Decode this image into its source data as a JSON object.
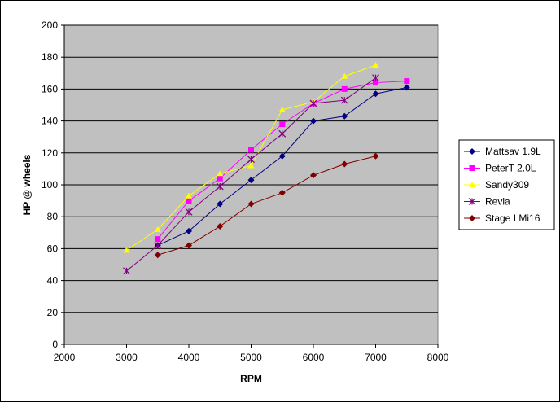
{
  "chart_data": {
    "type": "line",
    "title": "",
    "xlabel": "RPM",
    "ylabel": "HP @ wheels",
    "xlim": [
      2000,
      8000
    ],
    "ylim": [
      0,
      200
    ],
    "x_ticks": [
      2000,
      3000,
      4000,
      5000,
      6000,
      7000,
      8000
    ],
    "y_ticks": [
      0,
      20,
      40,
      60,
      80,
      100,
      120,
      140,
      160,
      180,
      200
    ],
    "grid": "horizontal",
    "legend_position": "right",
    "plot_background": "#c0c0c0",
    "series": [
      {
        "name": "Mattsav 1.9L",
        "color": "#000080",
        "marker": "diamond",
        "x": [
          3500,
          4000,
          4500,
          5000,
          5500,
          6000,
          6500,
          7000,
          7500
        ],
        "y": [
          62,
          71,
          88,
          103,
          118,
          140,
          143,
          157,
          161
        ]
      },
      {
        "name": "PeterT 2.0L",
        "color": "#ff00ff",
        "marker": "square",
        "x": [
          3500,
          4000,
          4500,
          5000,
          5500,
          6000,
          6500,
          7000,
          7500
        ],
        "y": [
          66,
          90,
          104,
          122,
          138,
          151,
          160,
          164,
          165
        ]
      },
      {
        "name": "Sandy309",
        "color": "#ffff00",
        "marker": "triangle",
        "x": [
          3000,
          3500,
          4000,
          4500,
          5000,
          5500,
          6000,
          6500,
          7000
        ],
        "y": [
          59,
          72,
          93,
          107,
          112,
          147,
          152,
          168,
          175
        ]
      },
      {
        "name": "Revla",
        "color": "#800080",
        "marker": "star",
        "x": [
          3000,
          3500,
          4000,
          4500,
          5000,
          5500,
          6000,
          6500,
          7000
        ],
        "y": [
          46,
          62,
          83,
          99,
          116,
          132,
          151,
          153,
          167
        ]
      },
      {
        "name": "Stage I Mi16",
        "color": "#800000",
        "marker": "diamond",
        "x": [
          3500,
          4000,
          4500,
          5000,
          5500,
          6000,
          6500,
          7000
        ],
        "y": [
          56,
          62,
          74,
          88,
          95,
          106,
          113,
          118
        ]
      }
    ]
  }
}
